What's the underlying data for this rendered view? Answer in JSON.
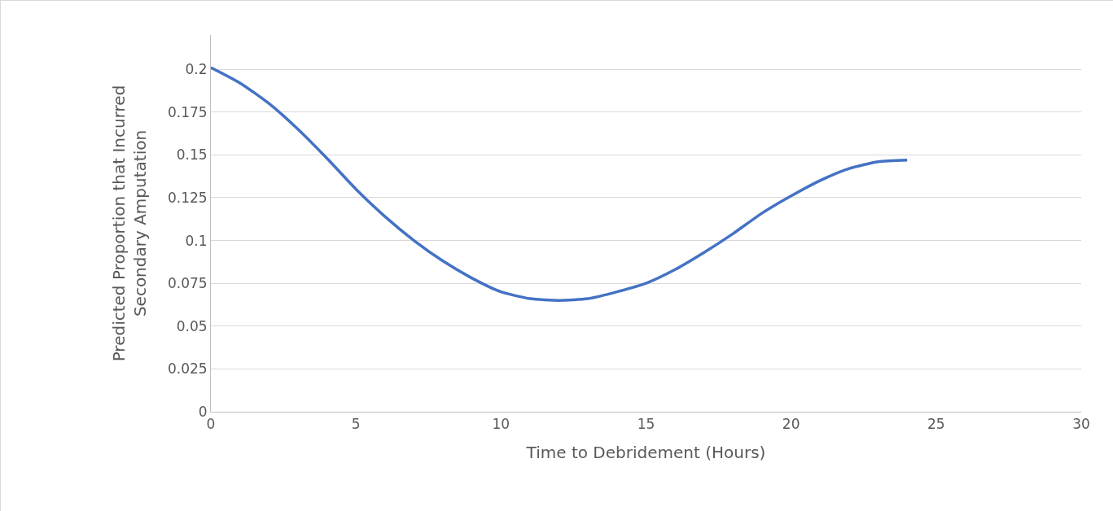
{
  "chart_data": {
    "type": "line",
    "xlabel": "Time to Debridement (Hours)",
    "ylabel": "Predicted Proportion that Incurred Secondary Amputation",
    "x": [
      0,
      1,
      2,
      3,
      4,
      5,
      6,
      7,
      8,
      9,
      10,
      11,
      12,
      13,
      14,
      15,
      16,
      17,
      18,
      19,
      20,
      21,
      22,
      23,
      24
    ],
    "series": [
      {
        "color": "#4472c4",
        "values": [
          0.201,
          0.192,
          0.18,
          0.165,
          0.148,
          0.13,
          0.114,
          0.1,
          0.088,
          0.078,
          0.07,
          0.066,
          0.065,
          0.066,
          0.07,
          0.075,
          0.083,
          0.093,
          0.104,
          0.116,
          0.126,
          0.135,
          0.142,
          0.146,
          0.147
        ]
      }
    ],
    "xlim": [
      0,
      30
    ],
    "xticks": [
      0,
      5,
      10,
      15,
      20,
      25,
      30
    ],
    "ylim": [
      0,
      0.22
    ],
    "yticks": [
      0,
      0.025,
      0.05,
      0.075,
      0.1,
      0.125,
      0.15,
      0.175,
      0.2
    ],
    "grid": "y",
    "marker": "none",
    "line_style": "solid"
  }
}
